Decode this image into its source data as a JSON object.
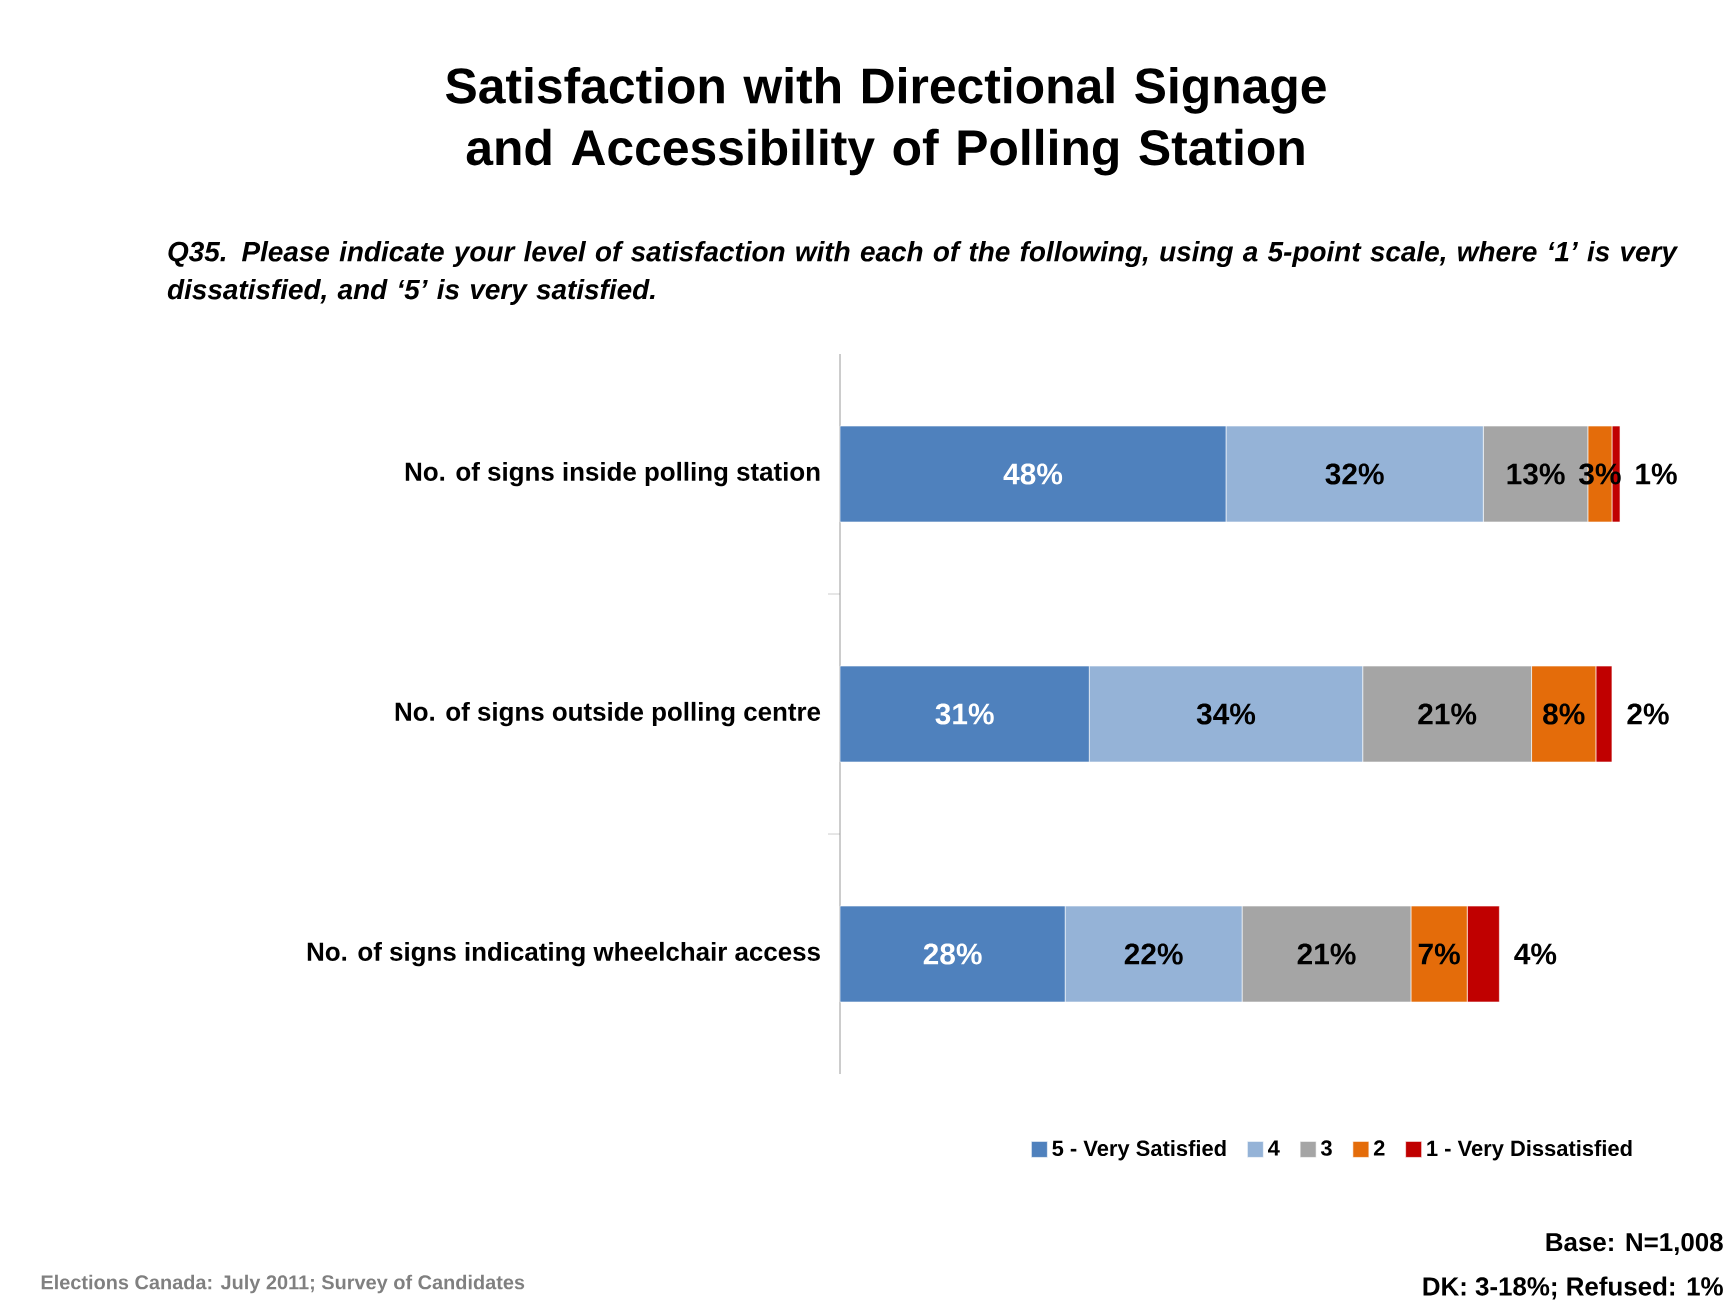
{
  "chart_data": {
    "type": "bar",
    "orientation": "horizontal",
    "stacked": true,
    "title": "Satisfaction with Directional Signage and Accessibility of Polling Station",
    "subtitle": "Q35. Please indicate your level of satisfaction with each of the following, using a 5-point scale, where ‘1’ is very dissatisfied, and ‘5’ is very satisfied.",
    "categories": [
      "No. of signs inside polling station",
      "No. of signs outside polling centre",
      "No. of signs indicating wheelchair access"
    ],
    "series": [
      {
        "name": "5 - Very Satisfied",
        "color": "#4f81bd",
        "values": [
          48,
          31,
          28
        ],
        "value_labels": [
          "48%",
          "31%",
          "28%"
        ]
      },
      {
        "name": "4",
        "color": "#95b3d7",
        "values": [
          32,
          34,
          22
        ],
        "value_labels": [
          "32%",
          "34%",
          "22%"
        ]
      },
      {
        "name": "3",
        "color": "#a5a5a5",
        "values": [
          13,
          21,
          21
        ],
        "value_labels": [
          "13%",
          "21%",
          "21%"
        ]
      },
      {
        "name": "2",
        "color": "#e46c0a",
        "values": [
          3,
          8,
          7
        ],
        "value_labels": [
          "3%",
          "8%",
          "7%"
        ]
      },
      {
        "name": "1 - Very Dissatisfied",
        "color": "#c00000",
        "values": [
          1,
          2,
          4
        ],
        "value_labels": [
          "1%",
          "2%",
          "4%"
        ]
      }
    ],
    "legend": "bottom",
    "annotations": [
      "Base: N=1,008",
      "DK: 3-18%; Refused: 1%",
      "Elections Canada: July 2011; Survey of Candidates"
    ]
  }
}
